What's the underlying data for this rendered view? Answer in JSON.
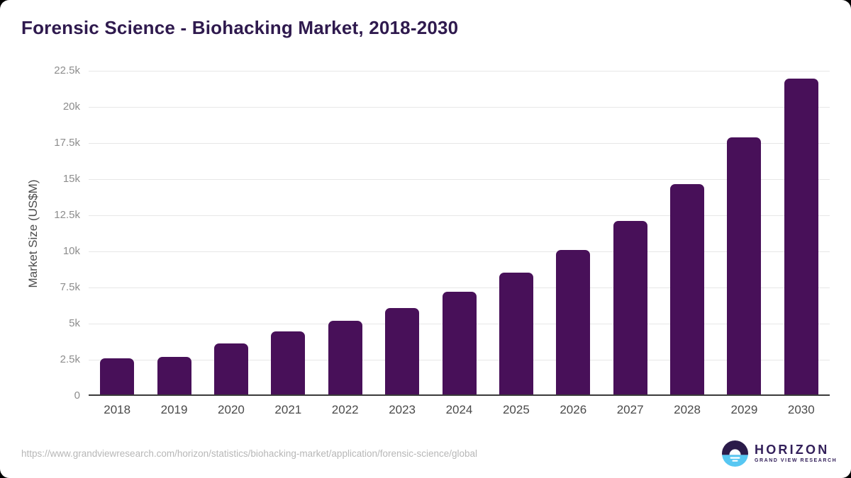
{
  "title": "Forensic Science - Biohacking Market, 2018-2030",
  "chart_data": {
    "type": "bar",
    "categories": [
      "2018",
      "2019",
      "2020",
      "2021",
      "2022",
      "2023",
      "2024",
      "2025",
      "2026",
      "2027",
      "2028",
      "2029",
      "2030"
    ],
    "values": [
      2600,
      2700,
      3650,
      4460,
      5190,
      6080,
      7200,
      8520,
      10120,
      12110,
      14660,
      17870,
      21980
    ],
    "title": "Forensic Science - Biohacking Market, 2018-2030",
    "xlabel": "",
    "ylabel": "Market Size (US$M)",
    "ylim": [
      0,
      22500
    ],
    "ytick_step": 2500,
    "ytick_labels": [
      "0",
      "2.5k",
      "5k",
      "7.5k",
      "10k",
      "12.5k",
      "15k",
      "17.5k",
      "20k",
      "22.5k"
    ],
    "grid": true,
    "legend": "none",
    "bar_color": "#481059"
  },
  "footer": {
    "source_url": "https://www.grandviewresearch.com/horizon/statistics/biohacking-market/application/forensic-science/global",
    "logo_name": "HORIZON",
    "logo_subtext": "GRAND VIEW RESEARCH"
  },
  "colors": {
    "bar": "#481059",
    "title_text": "#2f1a4e",
    "axis_title": "#4c4c4c",
    "y_tick_text": "#8d8d8d",
    "x_tick_text": "#4a4a4a",
    "gridline": "#e7e7e7",
    "axis_line": "#3a3a3a",
    "url_text": "#b7b7b7",
    "logo_purple": "#2b1b4a",
    "logo_blue": "#57c7f2",
    "logo_text": "#33205a"
  }
}
